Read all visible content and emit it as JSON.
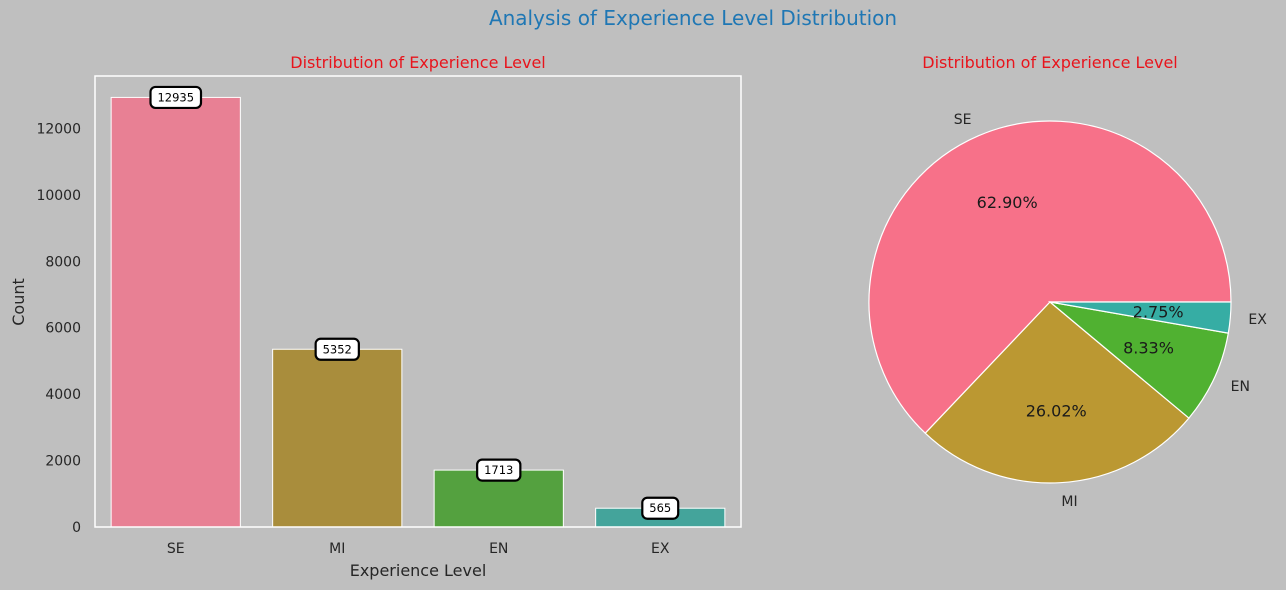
{
  "figure": {
    "title": "Analysis of Experience Level Distribution",
    "background": "#bfbfbf",
    "title_color": "#1f77b4"
  },
  "chart_data": [
    {
      "type": "bar",
      "title": "Distribution of Experience Level",
      "xlabel": "Experience Level",
      "ylabel": "Count",
      "categories": [
        "SE",
        "MI",
        "EN",
        "EX"
      ],
      "values": [
        12935,
        5352,
        1713,
        565
      ],
      "value_labels": [
        "12935",
        "5352",
        "1713",
        "565"
      ],
      "colors": [
        "#e88094",
        "#a98d3c",
        "#54a13f",
        "#44a49b"
      ],
      "ylim": [
        0,
        13580
      ],
      "yticks": [
        0,
        2000,
        4000,
        6000,
        8000,
        10000,
        12000
      ],
      "grid": false
    },
    {
      "type": "pie",
      "title": "Distribution of Experience Level",
      "labels": [
        "SE",
        "MI",
        "EN",
        "EX"
      ],
      "values": [
        62.9,
        26.02,
        8.33,
        2.75
      ],
      "percent_labels": [
        "62.90%",
        "26.02%",
        "8.33%",
        "2.75%"
      ],
      "colors": [
        "#f77189",
        "#bb9832",
        "#50b131",
        "#36ada4"
      ]
    }
  ]
}
